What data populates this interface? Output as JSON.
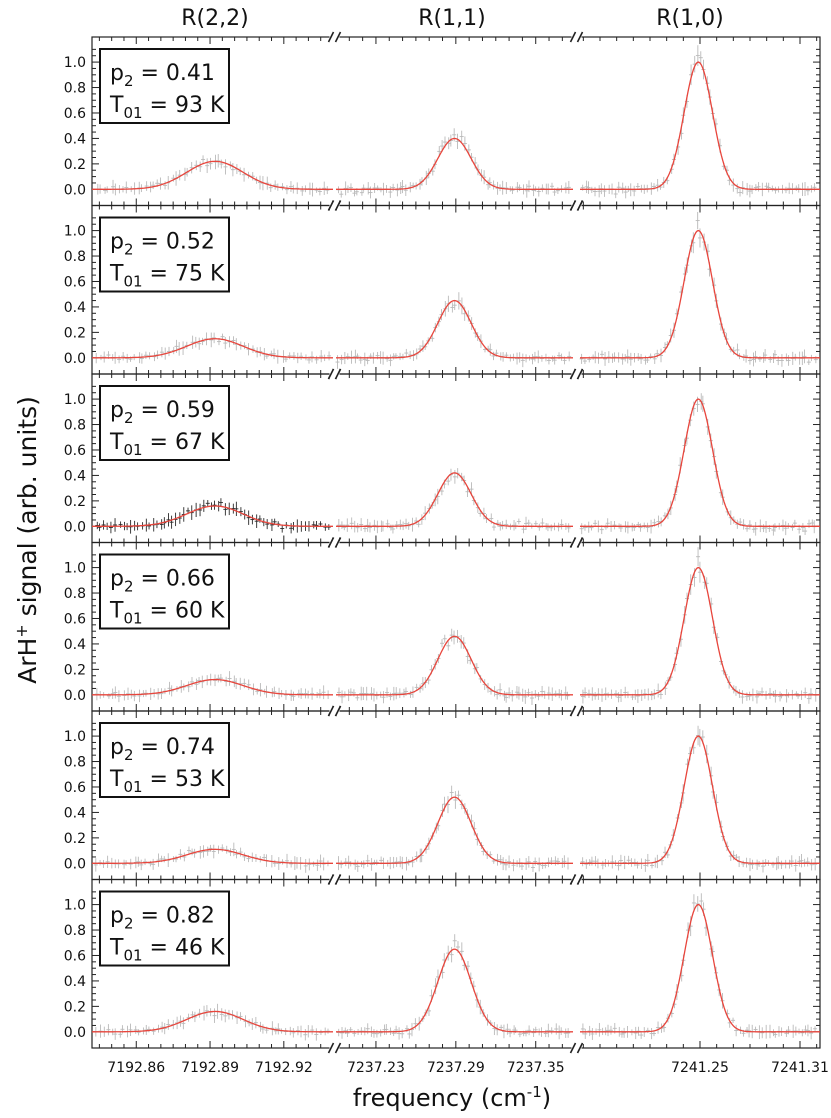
{
  "chart_data": {
    "type": "scatter",
    "description_free": true,
    "column_titles": [
      "R(2,2)",
      "R(1,1)",
      "R(1,0)"
    ],
    "xlabel_main": "frequency (cm",
    "xlabel_sup": "-1",
    "xlabel_tail": ")",
    "ylabel_main": "ArH",
    "ylabel_sup": "+",
    "ylabel_tail": " signal (arb. units)",
    "ylim": [
      -0.08,
      1.15
    ],
    "ytick_labels": [
      "0.0",
      "0.2",
      "0.4",
      "0.6",
      "0.8",
      "1.0"
    ],
    "ytick_values": [
      0.0,
      0.2,
      0.4,
      0.6,
      0.8,
      1.0
    ],
    "segments": [
      {
        "name": "R(2,2)",
        "xlim": [
          7192.842,
          7192.94
        ],
        "ticks": [
          7192.86,
          7192.89,
          7192.92
        ],
        "tick_labels": [
          "7192.86",
          "7192.89",
          "7192.92"
        ],
        "center": 7192.892,
        "sigma": 0.0115
      },
      {
        "name": "R(1,1)",
        "xlim": [
          7237.2,
          7237.378
        ],
        "ticks": [
          7237.23,
          7237.29,
          7237.35
        ],
        "tick_labels": [
          "7237.23",
          "7237.29",
          "7237.35"
        ],
        "center": 7237.289,
        "sigma": 0.0125
      },
      {
        "name": "R(1,0)",
        "xlim": [
          7241.178,
          7241.322
        ],
        "ticks": [
          7241.25,
          7241.31
        ],
        "tick_labels": [
          "7241.25",
          "7241.31"
        ],
        "center": 7241.249,
        "sigma": 0.0085
      }
    ],
    "panels": [
      {
        "p2_label": "p",
        "p2_sub": "2",
        "p2_value": " = 0.41",
        "t_label": "T",
        "t_sub": "01",
        "t_value": " = 93 K",
        "amplitudes": [
          0.22,
          0.4,
          1.0
        ],
        "highlight_segment": null
      },
      {
        "p2_label": "p",
        "p2_sub": "2",
        "p2_value": " = 0.52",
        "t_label": "T",
        "t_sub": "01",
        "t_value": " = 75 K",
        "amplitudes": [
          0.15,
          0.45,
          1.0
        ],
        "highlight_segment": null
      },
      {
        "p2_label": "p",
        "p2_sub": "2",
        "p2_value": " = 0.59",
        "t_label": "T",
        "t_sub": "01",
        "t_value": " = 67 K",
        "amplitudes": [
          0.16,
          0.42,
          1.0
        ],
        "highlight_segment": 0
      },
      {
        "p2_label": "p",
        "p2_sub": "2",
        "p2_value": " = 0.66",
        "t_label": "T",
        "t_sub": "01",
        "t_value": " = 60 K",
        "amplitudes": [
          0.12,
          0.46,
          1.0
        ],
        "highlight_segment": null
      },
      {
        "p2_label": "p",
        "p2_sub": "2",
        "p2_value": " = 0.74",
        "t_label": "T",
        "t_sub": "01",
        "t_value": " = 53 K",
        "amplitudes": [
          0.11,
          0.52,
          1.0
        ],
        "highlight_segment": null
      },
      {
        "p2_label": "p",
        "p2_sub": "2",
        "p2_value": " = 0.82",
        "t_label": "T",
        "t_sub": "01",
        "t_value": " = 46 K",
        "amplitudes": [
          0.16,
          0.65,
          1.0
        ],
        "highlight_segment": null
      }
    ],
    "colors": {
      "fit": "#e8453c",
      "data": "#b9b9b9",
      "data_highlight": "#2a2a2a",
      "axis": "#222222",
      "text": "#111111"
    }
  }
}
